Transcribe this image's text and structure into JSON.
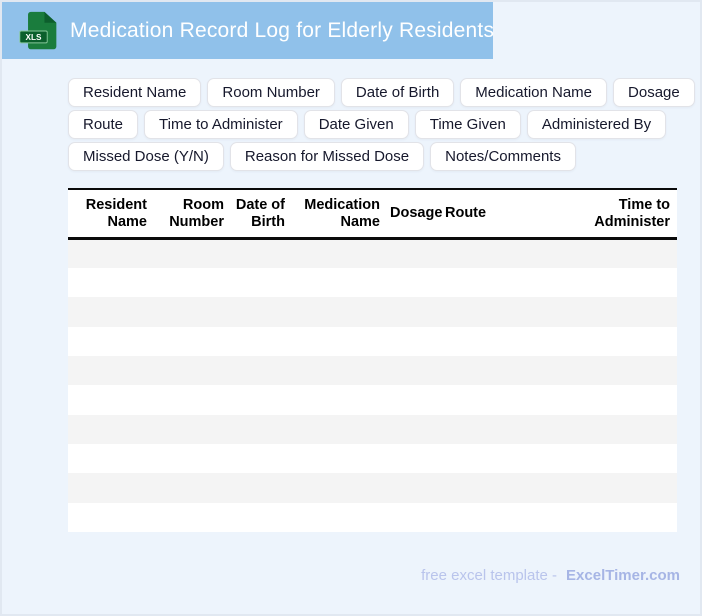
{
  "header": {
    "title": "Medication Record Log for Elderly Residents",
    "icon_label": "XLS"
  },
  "chips": {
    "rows": [
      [
        "Resident Name",
        "Room Number",
        "Date of Birth",
        "Medication Name",
        "Dosage"
      ],
      [
        "Route",
        "Time to Administer",
        "Date Given",
        "Time Given",
        "Administered By"
      ],
      [
        "Missed Dose (Y/N)",
        "Reason for Missed Dose",
        "Notes/Comments"
      ]
    ]
  },
  "table": {
    "columns": [
      "Resident\nName",
      "Room\nNumber",
      "Date of\nBirth",
      "Medication\nName",
      "Dosage",
      "Route",
      "Time to\nAdminister"
    ],
    "empty_row_count": 10
  },
  "footer": {
    "prefix": "free excel template -",
    "brand": "ExcelTimer.com"
  },
  "colors": {
    "header_bg": "#90c1ea",
    "page_bg": "#edf4fc",
    "row_stripe": "#f4f4f4",
    "table_border": "#0a0a0a",
    "icon_body_green": "#1a7c3d",
    "icon_fold_green": "#0d5e2d",
    "icon_badge_green": "#0a5f2c",
    "icon_badge_edge": "#86c89a",
    "footer_text": "#b9c4ec",
    "footer_brand": "#a6b5e5"
  }
}
